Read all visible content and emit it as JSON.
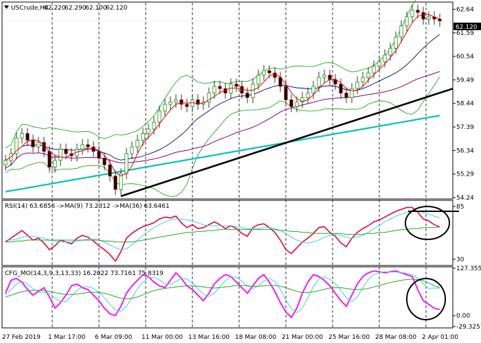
{
  "symbol": "USCrude,H4",
  "ohlc": {
    "open": "62.220",
    "high": "62.290",
    "low": "62.100",
    "close": "62.120"
  },
  "current_price": "62.120",
  "rsi_header": "RSI(14) 63.6856  ->MA(9) 73.2312  ->MA(36) 63.6461",
  "cfg_header": "CFG_MO(14,3,9,3,13,33) 16.2022 73.7161 75.8319",
  "colors": {
    "up_candle": "#009900",
    "down_candle": "#cc0000",
    "ma_fast": "#e60000",
    "ma_mid": "#000080",
    "ma_slow": "#800080",
    "ma_long": "#00c0c0",
    "bollinger": "#00a000",
    "trendline": "#000000",
    "rsi": "#e8003a",
    "rsi_ma9": "#3fd0e0",
    "rsi_ma36": "#22aa22",
    "cfg_main": "#ff00ff",
    "cfg_sig1": "#3fd0e0",
    "cfg_sig2": "#22aa22",
    "annotation": "#000000"
  },
  "chart_data": [
    {
      "type": "line",
      "title": "USCrude,H4",
      "x_labels": [
        "27 Feb 2019",
        "1 Mar 17:00",
        "6 Mar 09:00",
        "11 Mar 00:00",
        "13 Mar 16:00",
        "18 Mar 08:00",
        "21 Mar 00:00",
        "25 Mar 16:00",
        "28 Mar 08:00",
        "2 Apr 01:00"
      ],
      "y_ticks": [
        "62.64",
        "61.59",
        "60.54",
        "59.49",
        "58.44",
        "57.39",
        "56.34",
        "55.29",
        "54.24"
      ],
      "ylim": [
        54.24,
        62.9
      ],
      "grid": "vertical dashed",
      "series": [
        {
          "type": "candlestick",
          "close": [
            55.9,
            56.2,
            56.9,
            57.1,
            56.8,
            56.5,
            56.7,
            56.3,
            55.6,
            55.9,
            56.4,
            56.2,
            56.1,
            56.4,
            56.6,
            56.5,
            56.3,
            56.0,
            55.7,
            55.2,
            54.6,
            55.3,
            56.2,
            56.5,
            56.8,
            57.1,
            57.3,
            57.6,
            58.1,
            58.4,
            58.5,
            58.6,
            58.4,
            58.3,
            58.6,
            58.4,
            58.5,
            58.9,
            59.2,
            59.1,
            58.9,
            59.3,
            59.2,
            58.9,
            58.7,
            59.3,
            59.7,
            59.9,
            59.8,
            59.6,
            59.2,
            58.6,
            58.3,
            58.5,
            58.7,
            58.9,
            59.2,
            59.6,
            59.7,
            59.5,
            59.3,
            58.9,
            58.7,
            59.1,
            59.4,
            59.6,
            59.8,
            60.1,
            60.3,
            60.6,
            60.9,
            61.4,
            61.9,
            62.3,
            62.6,
            62.5,
            62.2,
            62.3,
            62.2,
            62.12
          ]
        }
      ]
    },
    {
      "type": "line",
      "title": "RSI(14) 63.6856  ->MA(9) 73.2312  ->MA(36) 63.6461",
      "y_ticks": [
        "85",
        "30"
      ],
      "ylim": [
        25,
        90
      ],
      "series": [
        {
          "values": [
            48,
            52,
            56,
            60,
            55,
            50,
            52,
            47,
            40,
            44,
            50,
            48,
            46,
            52,
            55,
            53,
            49,
            44,
            40,
            35,
            28,
            38,
            52,
            57,
            61,
            64,
            66,
            68,
            72,
            74,
            73,
            75,
            68,
            63,
            66,
            62,
            63,
            66,
            69,
            66,
            62,
            65,
            62,
            57,
            54,
            63,
            66,
            67,
            63,
            58,
            50,
            40,
            36,
            42,
            48,
            52,
            57,
            63,
            64,
            58,
            54,
            47,
            43,
            52,
            58,
            62,
            65,
            69,
            71,
            74,
            77,
            80,
            82,
            84,
            84,
            79,
            72,
            70,
            66,
            63.6856
          ]
        },
        {
          "values": [
            50,
            50,
            51,
            53,
            54,
            54,
            53,
            52,
            50,
            49,
            48,
            48,
            48,
            49,
            50,
            51,
            51,
            50,
            48,
            45,
            42,
            40,
            41,
            45,
            50,
            55,
            59,
            63,
            66,
            69,
            71,
            72,
            72,
            71,
            70,
            68,
            66,
            65,
            65,
            65,
            65,
            65,
            64,
            63,
            62,
            62,
            62,
            63,
            63,
            62,
            60,
            57,
            53,
            50,
            48,
            47,
            48,
            50,
            53,
            55,
            56,
            55,
            53,
            52,
            53,
            55,
            58,
            62,
            65,
            69,
            72,
            75,
            77,
            79,
            80,
            80,
            79,
            77,
            75,
            73.2312
          ]
        },
        {
          "values": [
            48,
            48,
            49,
            49,
            50,
            50,
            50,
            50,
            50,
            50,
            50,
            50,
            50,
            50,
            50,
            50,
            50,
            50,
            49,
            49,
            48,
            48,
            48,
            48,
            49,
            50,
            51,
            52,
            53,
            54,
            55,
            56,
            57,
            58,
            58,
            59,
            59,
            60,
            60,
            61,
            61,
            61,
            61,
            61,
            61,
            61,
            61,
            61,
            61,
            61,
            60,
            60,
            59,
            59,
            58,
            58,
            57,
            57,
            57,
            57,
            57,
            57,
            56,
            56,
            56,
            56,
            57,
            57,
            58,
            58,
            59,
            60,
            61,
            61,
            62,
            62,
            63,
            63,
            63,
            63.6461
          ]
        }
      ]
    },
    {
      "type": "line",
      "title": "CFG_MO(14,3,9,3,13,33) 16.2022 73.7161 75.8319",
      "y_ticks": [
        "127.3559",
        "0.00",
        "-29.3257"
      ],
      "ylim": [
        -29.3257,
        127.3559
      ],
      "series": [
        {
          "values": [
            60,
            95,
            100,
            90,
            70,
            55,
            65,
            75,
            50,
            20,
            35,
            55,
            80,
            85,
            75,
            70,
            55,
            40,
            20,
            5,
            0,
            25,
            60,
            80,
            95,
            110,
            105,
            90,
            80,
            75,
            95,
            115,
            100,
            80,
            70,
            55,
            40,
            60,
            85,
            100,
            110,
            105,
            90,
            75,
            60,
            80,
            100,
            110,
            90,
            65,
            35,
            10,
            -5,
            20,
            60,
            90,
            110,
            105,
            95,
            80,
            60,
            40,
            25,
            55,
            85,
            105,
            115,
            120,
            118,
            115,
            118,
            120,
            115,
            110,
            105,
            70,
            40,
            30,
            20,
            16.2022
          ]
        },
        {
          "values": [
            55,
            70,
            85,
            92,
            85,
            72,
            63,
            62,
            60,
            48,
            38,
            38,
            52,
            68,
            77,
            78,
            73,
            63,
            48,
            30,
            15,
            12,
            25,
            48,
            72,
            90,
            102,
            103,
            96,
            86,
            83,
            92,
            100,
            98,
            88,
            72,
            57,
            52,
            60,
            78,
            94,
            104,
            103,
            93,
            80,
            73,
            80,
            93,
            100,
            92,
            70,
            42,
            18,
            8,
            20,
            48,
            78,
            98,
            104,
            98,
            86,
            68,
            48,
            38,
            50,
            75,
            97,
            110,
            116,
            118,
            117,
            117,
            116,
            114,
            110,
            100,
            85,
            73,
            74,
            73.7161
          ]
        },
        {
          "values": [
            50,
            55,
            60,
            64,
            67,
            68,
            68,
            67,
            65,
            62,
            59,
            57,
            57,
            58,
            60,
            62,
            63,
            62,
            60,
            56,
            51,
            47,
            45,
            46,
            50,
            56,
            62,
            67,
            71,
            73,
            75,
            77,
            79,
            80,
            80,
            79,
            77,
            75,
            74,
            75,
            77,
            79,
            81,
            81,
            80,
            79,
            79,
            80,
            81,
            81,
            79,
            75,
            70,
            65,
            62,
            62,
            64,
            67,
            71,
            74,
            75,
            75,
            73,
            71,
            70,
            71,
            73,
            77,
            81,
            85,
            89,
            92,
            95,
            97,
            98,
            97,
            94,
            88,
            80,
            75.8319
          ]
        }
      ]
    }
  ]
}
